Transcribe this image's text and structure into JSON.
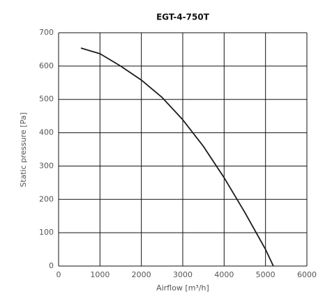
{
  "chart_data": {
    "type": "line",
    "title": "EGT-4-750T",
    "xlabel": "Airflow [m³/h]",
    "ylabel": "Static pressure [Pa]",
    "x": [
      540,
      1000,
      1500,
      2000,
      2500,
      3000,
      3500,
      4000,
      4500,
      5000,
      5190
    ],
    "values": [
      654,
      637,
      600,
      558,
      506,
      439,
      359,
      265,
      161,
      50,
      0
    ],
    "color": "#1a1a1a",
    "xlim": [
      0,
      6000
    ],
    "xticks": [
      0,
      1000,
      2000,
      3000,
      4000,
      5000,
      6000
    ],
    "ylim": [
      0,
      700
    ],
    "yticks": [
      0,
      100,
      200,
      300,
      400,
      500,
      600,
      700
    ],
    "grid": true
  }
}
